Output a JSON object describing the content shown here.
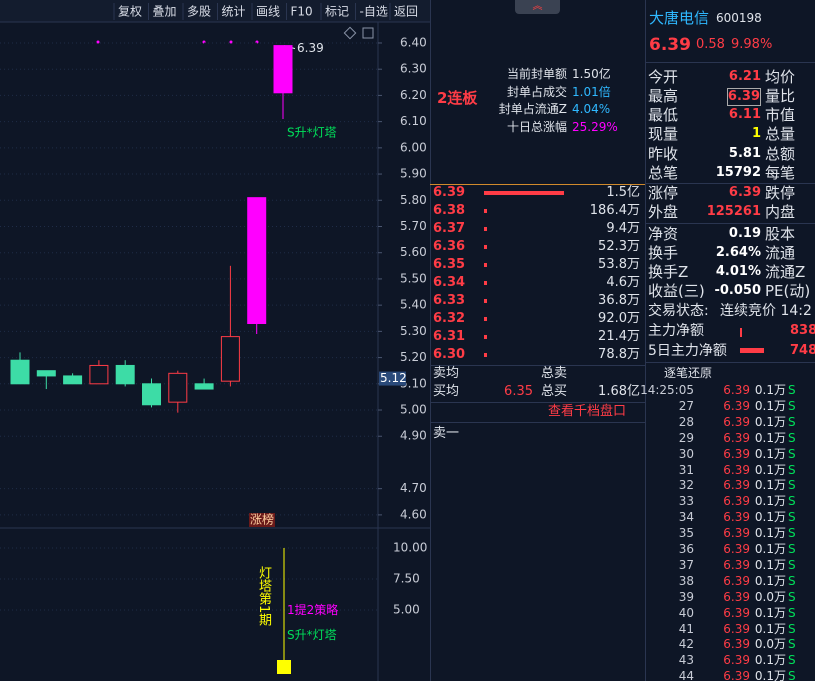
{
  "toolbar": {
    "buttons": [
      "复权",
      "叠加",
      "多股",
      "统计",
      "画线",
      "F10",
      "标记",
      "-自选",
      "返回"
    ]
  },
  "chart": {
    "ylim": [
      4.55,
      6.48
    ],
    "yticks": [
      {
        "value": 6.4,
        "label": "6.40"
      },
      {
        "value": 6.3,
        "label": "6.30"
      },
      {
        "value": 6.2,
        "label": "6.20"
      },
      {
        "value": 6.1,
        "label": "6.10"
      },
      {
        "value": 6.0,
        "label": "6.00"
      },
      {
        "value": 5.9,
        "label": "5.90"
      },
      {
        "value": 5.8,
        "label": "5.80"
      },
      {
        "value": 5.7,
        "label": "5.70"
      },
      {
        "value": 5.6,
        "label": "5.60"
      },
      {
        "value": 5.5,
        "label": "5.50"
      },
      {
        "value": 5.4,
        "label": "5.40"
      },
      {
        "value": 5.3,
        "label": "5.30"
      },
      {
        "value": 5.2,
        "label": "5.20"
      },
      {
        "value": 5.1,
        "label": "5.10"
      },
      {
        "value": 5.0,
        "label": "5.00"
      },
      {
        "value": 4.9,
        "label": "4.90"
      },
      {
        "value": 4.7,
        "label": "4.70"
      },
      {
        "value": 4.6,
        "label": "4.60"
      }
    ],
    "current_price": 5.12,
    "last_price": 6.39,
    "candles": [
      {
        "open": 5.19,
        "high": 5.22,
        "low": 5.1,
        "close": 5.1
      },
      {
        "open": 5.15,
        "high": 5.15,
        "low": 5.08,
        "close": 5.13
      },
      {
        "open": 5.13,
        "high": 5.14,
        "low": 5.1,
        "close": 5.1
      },
      {
        "open": 5.1,
        "high": 5.19,
        "low": 5.1,
        "close": 5.17
      },
      {
        "open": 5.17,
        "high": 5.19,
        "low": 5.09,
        "close": 5.1
      },
      {
        "open": 5.1,
        "high": 5.12,
        "low": 5.01,
        "close": 5.02
      },
      {
        "open": 5.03,
        "high": 5.15,
        "low": 4.99,
        "close": 5.14
      },
      {
        "open": 5.1,
        "high": 5.12,
        "low": 5.08,
        "close": 5.08
      },
      {
        "open": 5.11,
        "high": 5.55,
        "low": 5.09,
        "close": 5.28
      },
      {
        "open": 5.33,
        "high": 5.81,
        "low": 5.29,
        "close": 5.81
      },
      {
        "open": 6.21,
        "high": 6.39,
        "low": 6.11,
        "close": 6.39
      }
    ],
    "signal": "S升*灯塔",
    "badge": "涨榜"
  },
  "indicator": {
    "ylim": [
      -0.73,
      11.61
    ],
    "yticks": [
      {
        "value": 10,
        "label": "10.00"
      },
      {
        "value": 7.5,
        "label": "7.50"
      },
      {
        "value": 5,
        "label": "5.00"
      }
    ],
    "period": "灯塔第1期",
    "strategy": "1提2策略",
    "signal": "S升*灯塔"
  },
  "seal": {
    "streak": "2连板",
    "rows": [
      [
        "当前封单额",
        "1.50亿"
      ],
      [
        "封单占成交",
        "1.01倍"
      ],
      [
        "封单占流通Z",
        "4.04%"
      ],
      [
        "十日总涨幅",
        "25.29%"
      ]
    ]
  },
  "order_book": [
    [
      "6.39",
      "1.5亿"
    ],
    [
      "6.38",
      "186.4万"
    ],
    [
      "6.37",
      "9.4万"
    ],
    [
      "6.36",
      "52.3万"
    ],
    [
      "6.35",
      "53.8万"
    ],
    [
      "6.34",
      "4.6万"
    ],
    [
      "6.33",
      "36.8万"
    ],
    [
      "6.32",
      "92.0万"
    ],
    [
      "6.31",
      "21.4万"
    ],
    [
      "6.30",
      "78.8万"
    ]
  ],
  "summary": {
    "sell_avg": "卖均",
    "sell_total": "总卖",
    "buy_avg": "买均",
    "buy_avg_value": "6.35",
    "buy_total": "总买",
    "buy_total_value": "1.68亿",
    "link": "查看千档盘口",
    "ask1": "卖一"
  },
  "quote": {
    "name": "大唐电信",
    "code": "600198",
    "price": "6.39",
    "change": "0.58",
    "pct": "9.98%"
  },
  "stats": [
    [
      "今开",
      "6.21",
      "均价"
    ],
    [
      "最高",
      "6.39",
      "量比"
    ],
    [
      "最低",
      "6.11",
      "市值"
    ],
    [
      "现量",
      "1",
      "总量"
    ],
    [
      "昨收",
      "5.81",
      "总额"
    ],
    [
      "总笔",
      "15792",
      "每笔"
    ],
    [
      "涨停",
      "6.39",
      "跌停"
    ],
    [
      "外盘",
      "125261",
      "内盘"
    ],
    [
      "净资",
      "0.19",
      "股本"
    ],
    [
      "换手",
      "2.64%",
      "流通"
    ],
    [
      "换手Z",
      "4.01%",
      "流通Z"
    ],
    [
      "收益(三)",
      "-0.050",
      "PE(动)"
    ]
  ],
  "status": {
    "label": "交易状态:",
    "value": "连续竞价 14:2"
  },
  "flow": [
    [
      "主力净额",
      "838."
    ],
    [
      "5日主力净额",
      "748"
    ]
  ],
  "ticks": {
    "title": "逐笔还原",
    "rows": [
      [
        "14:25:05",
        "6.39",
        "0.1万",
        "S"
      ],
      [
        "27",
        "6.39",
        "0.1万",
        "S"
      ],
      [
        "28",
        "6.39",
        "0.1万",
        "S"
      ],
      [
        "29",
        "6.39",
        "0.1万",
        "S"
      ],
      [
        "30",
        "6.39",
        "0.1万",
        "S"
      ],
      [
        "31",
        "6.39",
        "0.1万",
        "S"
      ],
      [
        "32",
        "6.39",
        "0.1万",
        "S"
      ],
      [
        "33",
        "6.39",
        "0.1万",
        "S"
      ],
      [
        "34",
        "6.39",
        "0.1万",
        "S"
      ],
      [
        "35",
        "6.39",
        "0.1万",
        "S"
      ],
      [
        "36",
        "6.39",
        "0.1万",
        "S"
      ],
      [
        "37",
        "6.39",
        "0.1万",
        "S"
      ],
      [
        "38",
        "6.39",
        "0.1万",
        "S"
      ],
      [
        "39",
        "6.39",
        "0.0万",
        "S"
      ],
      [
        "40",
        "6.39",
        "0.1万",
        "S"
      ],
      [
        "41",
        "6.39",
        "0.1万",
        "S"
      ],
      [
        "42",
        "6.39",
        "0.0万",
        "S"
      ],
      [
        "43",
        "6.39",
        "0.1万",
        "S"
      ],
      [
        "44",
        "6.39",
        "0.1万",
        "S"
      ]
    ]
  }
}
